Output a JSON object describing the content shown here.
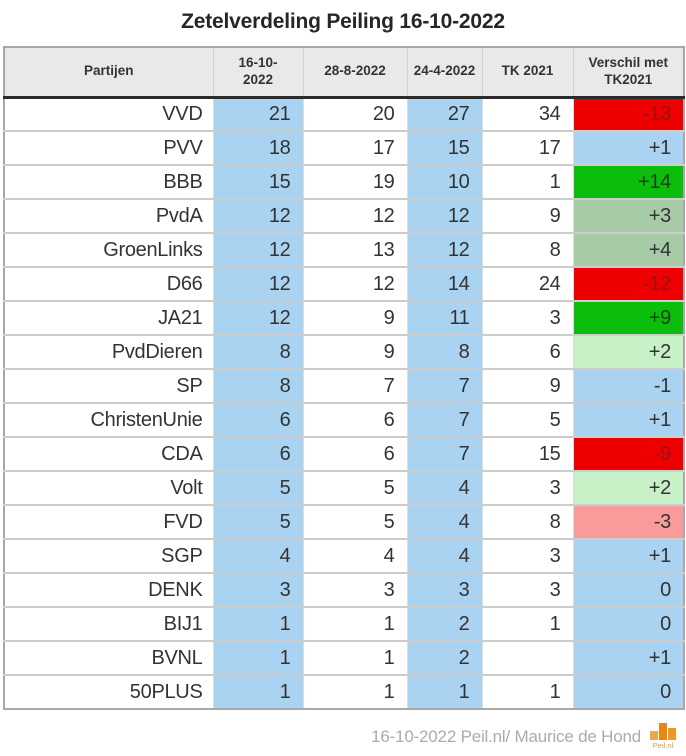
{
  "title": "Zetelverdeling Peiling 16-10-2022",
  "table": {
    "columns": {
      "partijen": "Partijen",
      "c1a": "16-10-",
      "c1b": "2022",
      "c2": "28-8-2022",
      "c3": "24-4-2022",
      "c4": "TK 2021",
      "c5a": "Verschil met",
      "c5b": "TK2021"
    },
    "rows": [
      {
        "party": "VVD",
        "values": [
          "21",
          "20",
          "27",
          "34"
        ],
        "diff": "-13",
        "diff_level": "red-strong"
      },
      {
        "party": "PVV",
        "values": [
          "18",
          "17",
          "15",
          "17"
        ],
        "diff": "+1",
        "diff_level": "blue"
      },
      {
        "party": "BBB",
        "values": [
          "15",
          "19",
          "10",
          "1"
        ],
        "diff": "+14",
        "diff_level": "green-strong"
      },
      {
        "party": "PvdA",
        "values": [
          "12",
          "12",
          "12",
          "9"
        ],
        "diff": "+3",
        "diff_level": "green-mid"
      },
      {
        "party": "GroenLinks",
        "values": [
          "12",
          "13",
          "12",
          "8"
        ],
        "diff": "+4",
        "diff_level": "green-mid"
      },
      {
        "party": "D66",
        "values": [
          "12",
          "12",
          "14",
          "24"
        ],
        "diff": "-12",
        "diff_level": "red-strong"
      },
      {
        "party": "JA21",
        "values": [
          "12",
          "9",
          "11",
          "3"
        ],
        "diff": "+9",
        "diff_level": "green-strong"
      },
      {
        "party": "PvdDieren",
        "values": [
          "8",
          "9",
          "8",
          "6"
        ],
        "diff": "+2",
        "diff_level": "green-pale"
      },
      {
        "party": "SP",
        "values": [
          "8",
          "7",
          "7",
          "9"
        ],
        "diff": "-1",
        "diff_level": "blue"
      },
      {
        "party": "ChristenUnie",
        "values": [
          "6",
          "6",
          "7",
          "5"
        ],
        "diff": "+1",
        "diff_level": "blue"
      },
      {
        "party": "CDA",
        "values": [
          "6",
          "6",
          "7",
          "15"
        ],
        "diff": "-9",
        "diff_level": "red-strong"
      },
      {
        "party": "Volt",
        "values": [
          "5",
          "5",
          "4",
          "3"
        ],
        "diff": "+2",
        "diff_level": "green-pale"
      },
      {
        "party": "FVD",
        "values": [
          "5",
          "5",
          "4",
          "8"
        ],
        "diff": "-3",
        "diff_level": "red-pale"
      },
      {
        "party": "SGP",
        "values": [
          "4",
          "4",
          "4",
          "3"
        ],
        "diff": "+1",
        "diff_level": "blue"
      },
      {
        "party": "DENK",
        "values": [
          "3",
          "3",
          "3",
          "3"
        ],
        "diff": "0",
        "diff_level": "blue"
      },
      {
        "party": "BIJ1",
        "values": [
          "1",
          "1",
          "2",
          "1"
        ],
        "diff": "0",
        "diff_level": "blue"
      },
      {
        "party": "BVNL",
        "values": [
          "1",
          "1",
          "2",
          ""
        ],
        "diff": "+1",
        "diff_level": "blue"
      },
      {
        "party": "50PLUS",
        "values": [
          "1",
          "1",
          "1",
          "1"
        ],
        "diff": "0",
        "diff_level": "blue"
      }
    ]
  },
  "footer": {
    "credit": "16-10-2022 Peil.nl/ Maurice de Hond",
    "logo_text": "Peil.nl"
  },
  "colors": {
    "blue": "#a9d3f1",
    "red_strong": "#ee0000",
    "red_pale": "#f99b9b",
    "green_strong": "#0cbe0c",
    "green_mid": "#a7cba7",
    "green_pale": "#c8f1c8",
    "orange_light": "#f2a54b",
    "orange_dark": "#e8860f",
    "orange_mid": "#ef9726"
  },
  "chart_data": {
    "type": "table",
    "title": "Zetelverdeling Peiling 16-10-2022",
    "columns": [
      "Partijen",
      "16-10-2022",
      "28-8-2022",
      "24-4-2022",
      "TK 2021",
      "Verschil met TK2021"
    ],
    "rows": [
      [
        "VVD",
        21,
        20,
        27,
        34,
        -13
      ],
      [
        "PVV",
        18,
        17,
        15,
        17,
        1
      ],
      [
        "BBB",
        15,
        19,
        10,
        1,
        14
      ],
      [
        "PvdA",
        12,
        12,
        12,
        9,
        3
      ],
      [
        "GroenLinks",
        12,
        13,
        12,
        8,
        4
      ],
      [
        "D66",
        12,
        12,
        14,
        24,
        -12
      ],
      [
        "JA21",
        12,
        9,
        11,
        3,
        9
      ],
      [
        "PvdDieren",
        8,
        9,
        8,
        6,
        2
      ],
      [
        "SP",
        8,
        7,
        7,
        9,
        -1
      ],
      [
        "ChristenUnie",
        6,
        6,
        7,
        5,
        1
      ],
      [
        "CDA",
        6,
        6,
        7,
        15,
        -9
      ],
      [
        "Volt",
        5,
        5,
        4,
        3,
        2
      ],
      [
        "FVD",
        5,
        5,
        4,
        8,
        -3
      ],
      [
        "SGP",
        4,
        4,
        4,
        3,
        1
      ],
      [
        "DENK",
        3,
        3,
        3,
        3,
        0
      ],
      [
        "BIJ1",
        1,
        1,
        2,
        1,
        0
      ],
      [
        "BVNL",
        1,
        1,
        2,
        null,
        1
      ],
      [
        "50PLUS",
        1,
        1,
        1,
        1,
        0
      ]
    ],
    "legend_note": "Last column color-coded: strong red = big loss, pale red = small loss, blue = roughly unchanged, pale/mid green = small gain, strong green = big gain",
    "source": "16-10-2022 Peil.nl/ Maurice de Hond"
  }
}
